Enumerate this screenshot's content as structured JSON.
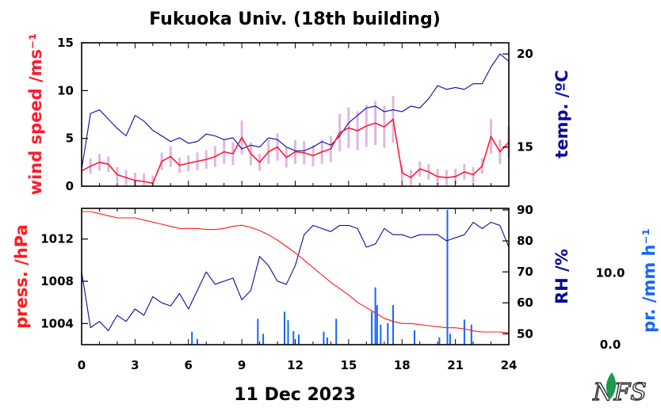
{
  "colors": {
    "wind": "#ff1a2e",
    "wind_raw": "#d9a6dc",
    "temperature": "#0a0a9a",
    "pressure": "#ff1a1a",
    "humidity": "#0a0a9a",
    "precip": "#1466ff",
    "frame": "#000000"
  },
  "chart_data": [
    {
      "type": "line",
      "title": "Fukuoka Univ. (18th building)",
      "xlabel": "11 Dec 2023",
      "x_ticks": [
        "0",
        "3",
        "6",
        "9",
        "12",
        "15",
        "18",
        "21",
        "24"
      ],
      "xlim": [
        0,
        24
      ],
      "left_axis": {
        "label": "wind speed /ms⁻¹",
        "ticks": [
          "0",
          "5",
          "10",
          "15"
        ],
        "lim": [
          0,
          15
        ]
      },
      "right_axis": {
        "label": "temp. /ºC",
        "ticks": [
          "15",
          "20"
        ],
        "lim": [
          12.9,
          20.6
        ]
      },
      "series": [
        {
          "axis": "left",
          "kind": "wind",
          "x": [
            0,
            0.5,
            1,
            1.5,
            2,
            2.5,
            3,
            3.5,
            4,
            4.5,
            5,
            5.5,
            6,
            6.5,
            7,
            7.5,
            8,
            8.5,
            9,
            9.5,
            10,
            10.5,
            11,
            11.5,
            12,
            12.5,
            13,
            13.5,
            14,
            14.5,
            15,
            15.5,
            16,
            16.5,
            17,
            17.5,
            18,
            18.5,
            19,
            19.5,
            20,
            20.5,
            21,
            21.5,
            22,
            22.5,
            23,
            23.5,
            24
          ],
          "values": [
            1.6,
            2.1,
            2.5,
            2.3,
            1.2,
            0.9,
            0.6,
            0.5,
            0.3,
            2.6,
            3.1,
            2.2,
            2.4,
            2.6,
            2.8,
            3.1,
            3.6,
            3.4,
            5.1,
            3.4,
            2.5,
            3.6,
            4.1,
            3.0,
            3.6,
            3.5,
            3.2,
            3.6,
            3.9,
            5.6,
            6.1,
            5.8,
            6.3,
            6.6,
            6.2,
            7.0,
            1.4,
            0.9,
            1.8,
            1.5,
            1.0,
            0.9,
            1.0,
            1.5,
            1.2,
            2.1,
            5.2,
            3.6,
            4.6
          ]
        },
        {
          "axis": "right",
          "kind": "temperature",
          "x": [
            0,
            0.5,
            1,
            1.5,
            2,
            2.5,
            3,
            3.5,
            4,
            4.5,
            5,
            5.5,
            6,
            6.5,
            7,
            7.5,
            8,
            8.5,
            9,
            9.5,
            10,
            10.5,
            11,
            11.5,
            12,
            12.5,
            13,
            13.5,
            14,
            14.5,
            15,
            15.5,
            16,
            16.5,
            17,
            17.5,
            18,
            18.5,
            19,
            19.5,
            20,
            20.5,
            21,
            21.5,
            22,
            22.5,
            23,
            23.5,
            24
          ],
          "values": [
            13.8,
            16.8,
            17.0,
            16.5,
            16.0,
            15.6,
            16.7,
            16.4,
            15.9,
            15.6,
            15.3,
            15.5,
            15.2,
            15.3,
            15.7,
            15.6,
            15.4,
            15.5,
            14.9,
            15.1,
            15.0,
            15.5,
            15.4,
            15.0,
            14.8,
            14.8,
            15.0,
            15.3,
            15.1,
            15.6,
            16.3,
            16.7,
            17.1,
            17.2,
            16.9,
            17.0,
            16.9,
            17.2,
            17.1,
            17.6,
            18.3,
            18.1,
            18.2,
            18.1,
            18.4,
            18.4,
            19.3,
            20.0,
            19.6
          ]
        }
      ]
    },
    {
      "type": "line",
      "xlabel": "11 Dec 2023",
      "x_ticks": [
        "0",
        "3",
        "6",
        "9",
        "12",
        "15",
        "18",
        "21",
        "24"
      ],
      "xlim": [
        0,
        24
      ],
      "left_axis": {
        "label": "press. /hPa",
        "ticks": [
          "1004",
          "1008",
          "1012"
        ],
        "lim": [
          1002,
          1014.9
        ]
      },
      "right_axis": {
        "label": "RH /%",
        "ticks": [
          "50",
          "60",
          "70",
          "80",
          "90"
        ],
        "lim": [
          46.5,
          90.5
        ]
      },
      "precip_axis": {
        "label": "pr. /mm h⁻¹",
        "ticks": [
          "0.0",
          "10.0"
        ],
        "lim": [
          0,
          19
        ]
      },
      "series": [
        {
          "axis": "left",
          "kind": "pressure",
          "x": [
            0,
            0.5,
            1,
            1.5,
            2,
            2.5,
            3,
            3.5,
            4,
            4.5,
            5,
            5.5,
            6,
            6.5,
            7,
            7.5,
            8,
            8.5,
            9,
            9.5,
            10,
            10.5,
            11,
            11.5,
            12,
            12.5,
            13,
            13.5,
            14,
            14.5,
            15,
            15.5,
            16,
            16.5,
            17,
            17.5,
            18,
            18.5,
            19,
            19.5,
            20,
            20.5,
            21,
            21.5,
            22,
            22.5,
            23,
            23.5,
            24
          ],
          "values": [
            1014.6,
            1014.6,
            1014.4,
            1014.2,
            1014.0,
            1014.0,
            1014.0,
            1013.8,
            1013.6,
            1013.4,
            1013.2,
            1013.0,
            1013.0,
            1013.0,
            1012.9,
            1012.9,
            1013.0,
            1013.2,
            1013.3,
            1013.1,
            1012.8,
            1012.4,
            1011.9,
            1011.3,
            1010.7,
            1010.0,
            1009.3,
            1008.6,
            1007.9,
            1007.3,
            1006.7,
            1006.0,
            1005.5,
            1005.0,
            1004.5,
            1004.2,
            1004.0,
            1004.0,
            1003.9,
            1003.8,
            1003.7,
            1003.6,
            1003.6,
            1003.5,
            1003.3,
            1003.2,
            1003.2,
            1003.2,
            1003.1
          ]
        },
        {
          "axis": "right",
          "kind": "humidity",
          "x": [
            0,
            0.5,
            1,
            1.5,
            2,
            2.5,
            3,
            3.5,
            4,
            4.5,
            5,
            5.5,
            6,
            6.5,
            7,
            7.5,
            8,
            8.5,
            9,
            9.5,
            10,
            10.5,
            11,
            11.5,
            12,
            12.5,
            13,
            13.5,
            14,
            14.5,
            15,
            15.5,
            16,
            16.5,
            17,
            17.5,
            18,
            18.5,
            19,
            19.5,
            20,
            20.5,
            21,
            21.5,
            22,
            22.5,
            23,
            23.5,
            24
          ],
          "values": [
            70,
            52,
            54,
            51,
            56,
            54,
            58,
            56,
            62,
            60,
            59,
            63,
            58,
            64,
            70,
            66,
            67,
            68,
            61,
            64,
            75,
            72,
            67,
            66,
            72,
            82,
            85,
            84,
            83,
            85,
            85,
            84,
            78,
            79,
            84,
            82,
            82,
            81,
            82,
            82,
            82,
            80,
            81,
            82,
            86,
            84,
            86,
            85,
            78
          ]
        },
        {
          "axis": "precip",
          "kind": "precip",
          "x": [
            6.2,
            6.5,
            9.9,
            10.2,
            11.4,
            11.6,
            11.9,
            12.2,
            13.6,
            13.8,
            14.3,
            16.3,
            16.5,
            16.6,
            16.8,
            17.2,
            17.5,
            18.7,
            20.1,
            20.55,
            20.7,
            21.5,
            21.9
          ],
          "values": [
            1.8,
            0.8,
            3.6,
            1.5,
            4.6,
            3.4,
            1.9,
            1.4,
            1.8,
            1.0,
            3.6,
            4.6,
            8.0,
            5.5,
            2.8,
            3.0,
            5.5,
            2.0,
            1.0,
            18.8,
            1.5,
            3.5,
            2.8
          ]
        }
      ]
    }
  ],
  "footer": {
    "logo": "NFS"
  }
}
